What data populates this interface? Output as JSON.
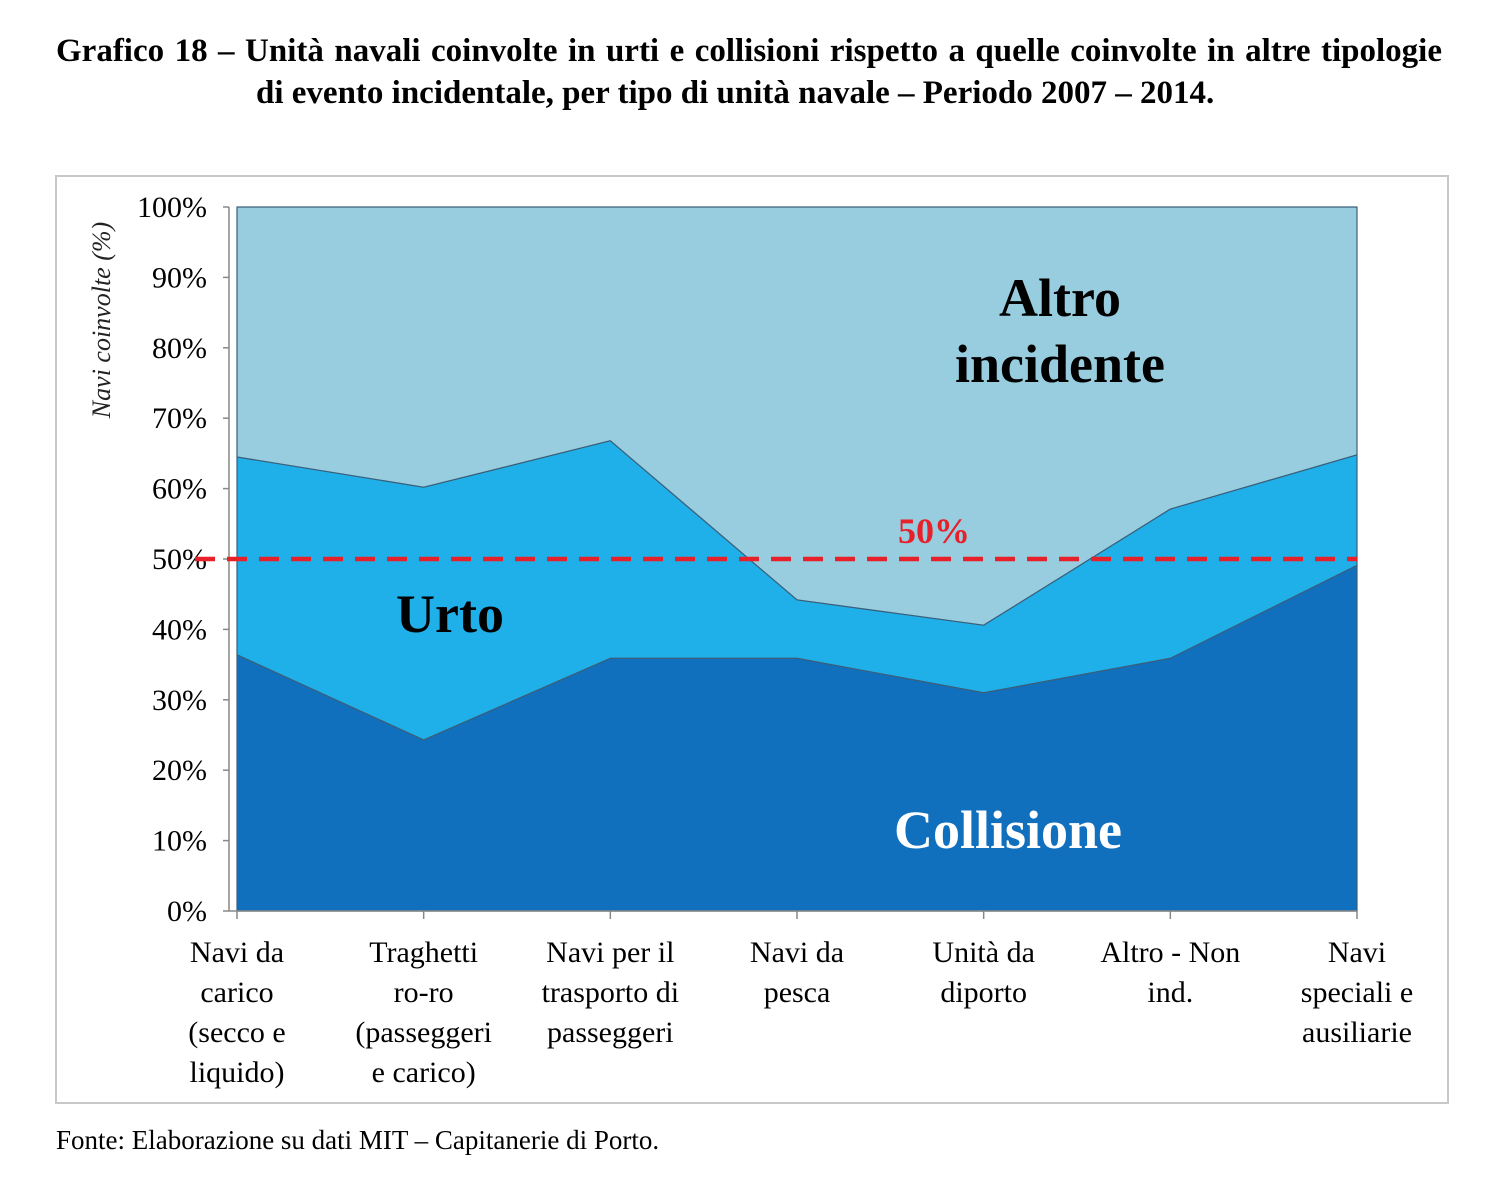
{
  "title": "Grafico 18 – Unità navali coinvolte in urti e collisioni rispetto a quelle coinvolte in altre tipologie di evento incidentale, per tipo di unità navale – Periodo 2007 – 2014.",
  "source": "Fonte: Elaborazione su dati MIT – Capitanerie di Porto.",
  "chart_data": {
    "type": "area",
    "stacked": true,
    "title": "",
    "xlabel": "",
    "ylabel": "Navi coinvolte (%)",
    "ylim": [
      0,
      100
    ],
    "y_ticks": [
      "0%",
      "10%",
      "20%",
      "30%",
      "40%",
      "50%",
      "60%",
      "70%",
      "80%",
      "90%",
      "100%"
    ],
    "grid": false,
    "categories": [
      [
        "Navi da",
        "carico",
        "(secco e",
        "liquido)"
      ],
      [
        "Traghetti",
        "ro-ro",
        "(passeggeri",
        "e carico)"
      ],
      [
        "Navi per il",
        "trasporto di",
        "passeggeri"
      ],
      [
        "Navi da",
        "pesca"
      ],
      [
        "Unità da",
        "diporto"
      ],
      [
        "Altro - Non",
        "ind."
      ],
      [
        "Navi",
        "speciali e",
        "ausiliarie"
      ]
    ],
    "series": [
      {
        "name": "Collisione",
        "color": "#1170BE",
        "label_color": "#FFFFFF",
        "values": [
          36.4,
          24.3,
          35.9,
          35.9,
          31.0,
          35.9,
          49.1
        ]
      },
      {
        "name": "Urto",
        "color": "#1FB0EA",
        "label_color": "#000000",
        "values": [
          28.1,
          35.9,
          30.9,
          8.3,
          9.6,
          21.2,
          15.7
        ]
      },
      {
        "name": "Altro incidente",
        "label_lines": [
          "Altro",
          "incidente"
        ],
        "color": "#97CDDF",
        "label_color": "#000000",
        "values": [
          35.5,
          39.8,
          33.2,
          55.8,
          59.4,
          42.9,
          35.2
        ]
      }
    ],
    "reference_line": {
      "value": 50,
      "label": "50%",
      "color": "#E8202A",
      "style": "dashed"
    }
  }
}
